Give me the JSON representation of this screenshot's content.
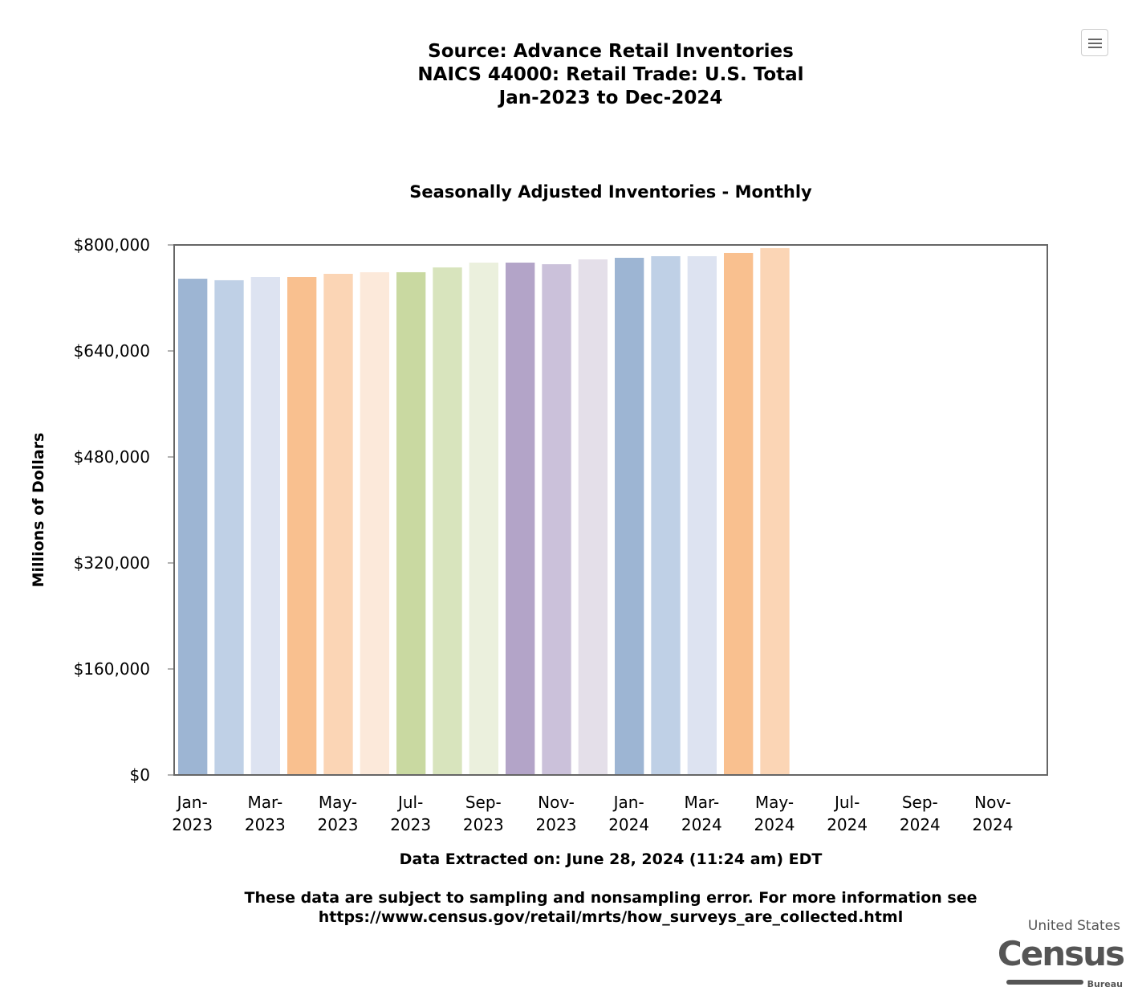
{
  "titles": [
    "Source: Advance Retail Inventories",
    "NAICS 44000: Retail Trade: U.S. Total",
    "Jan-2023 to Dec-2024"
  ],
  "menu_icon": "hamburger-menu-icon",
  "chart_data": {
    "type": "bar",
    "title": "Seasonally Adjusted Inventories - Monthly",
    "xlabel": "",
    "ylabel": "Millions of Dollars",
    "ylim": [
      0,
      800000
    ],
    "yticks": [
      "$0",
      "$160,000",
      "$320,000",
      "$480,000",
      "$640,000",
      "$800,000"
    ],
    "ytick_values": [
      0,
      160000,
      320000,
      480000,
      640000,
      800000
    ],
    "categories": [
      "Jan-2023",
      "Feb-2023",
      "Mar-2023",
      "Apr-2023",
      "May-2023",
      "Jun-2023",
      "Jul-2023",
      "Aug-2023",
      "Sep-2023",
      "Oct-2023",
      "Nov-2023",
      "Dec-2023",
      "Jan-2024",
      "Feb-2024",
      "Mar-2024",
      "Apr-2024",
      "May-2024",
      "Jun-2024",
      "Jul-2024",
      "Aug-2024",
      "Sep-2024",
      "Oct-2024",
      "Nov-2024",
      "Dec-2024"
    ],
    "values": [
      749000,
      746700,
      751500,
      751500,
      756400,
      758800,
      758800,
      766100,
      773300,
      773300,
      770900,
      778200,
      780600,
      783000,
      783000,
      787900,
      795200,
      null,
      null,
      null,
      null,
      null,
      null,
      null
    ],
    "xtick_labels": [
      [
        "Jan-",
        "2023"
      ],
      [
        "Mar-",
        "2023"
      ],
      [
        "May-",
        "2023"
      ],
      [
        "Jul-",
        "2023"
      ],
      [
        "Sep-",
        "2023"
      ],
      [
        "Nov-",
        "2023"
      ],
      [
        "Jan-",
        "2024"
      ],
      [
        "Mar-",
        "2024"
      ],
      [
        "May-",
        "2024"
      ],
      [
        "Jul-",
        "2024"
      ],
      [
        "Sep-",
        "2024"
      ],
      [
        "Nov-",
        "2024"
      ]
    ],
    "colors": [
      "#9db5d3",
      "#bfd0e6",
      "#dde3f1",
      "#f9c08f",
      "#fbd5b5",
      "#fce9da",
      "#c9d9a1",
      "#d8e4bd",
      "#ebf0dd",
      "#b3a4c8",
      "#cbc1da",
      "#e4dfe9"
    ],
    "grid": false
  },
  "footer": {
    "extracted": "Data Extracted on: June 28, 2024 (11:24 am) EDT",
    "note1": "These data are subject to sampling and nonsampling error. For more information see",
    "note2": "https://www.census.gov/retail/mrts/how_surveys_are_collected.html"
  },
  "logo": {
    "line1": "United States",
    "line2": "Census",
    "line3": "Bureau"
  }
}
